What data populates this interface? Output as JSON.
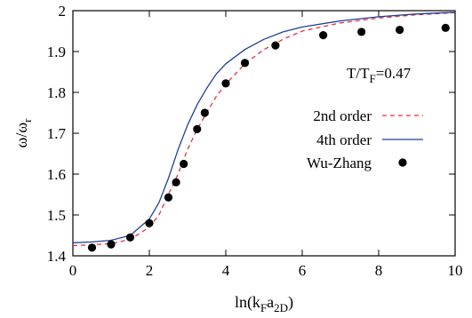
{
  "chart_data": {
    "type": "line",
    "title": "",
    "xlabel": {
      "main": "ln(k",
      "sub1": "F",
      "mid": "a",
      "sub2": "2D",
      "tail": ")"
    },
    "ylabel": {
      "main": "ω/ω",
      "sub": "r"
    },
    "xlim": [
      0,
      10
    ],
    "ylim": [
      1.4,
      2.0
    ],
    "x_ticks": [
      0,
      2,
      4,
      6,
      8,
      10
    ],
    "y_ticks": [
      1.4,
      1.5,
      1.6,
      1.7,
      1.8,
      1.9,
      2.0
    ],
    "x_tick_labels": [
      "0",
      "2",
      "4",
      "6",
      "8",
      "10"
    ],
    "y_tick_labels": [
      "1.4",
      "1.5",
      "1.6",
      "1.7",
      "1.8",
      "1.9",
      "2"
    ],
    "annotation": {
      "main": "T/T",
      "sub": "F",
      "tail": "=0.47"
    },
    "legend_position": "right-middle",
    "series": [
      {
        "name": "2nd order",
        "style": "dashed",
        "color": "#e8303a",
        "x": [
          0.0,
          0.5,
          1.0,
          1.5,
          2.0,
          2.25,
          2.5,
          2.75,
          3.0,
          3.25,
          3.5,
          3.75,
          4.0,
          4.5,
          5.0,
          5.5,
          6.0,
          7.0,
          8.0,
          9.0,
          10.0
        ],
        "y": [
          1.425,
          1.427,
          1.43,
          1.44,
          1.47,
          1.5,
          1.55,
          1.6,
          1.66,
          1.71,
          1.75,
          1.79,
          1.82,
          1.87,
          1.905,
          1.93,
          1.95,
          1.97,
          1.982,
          1.99,
          1.995
        ]
      },
      {
        "name": "4th order",
        "style": "solid",
        "color": "#1f3f9a",
        "x": [
          0.0,
          0.5,
          1.0,
          1.5,
          2.0,
          2.25,
          2.5,
          2.75,
          3.0,
          3.25,
          3.5,
          3.75,
          4.0,
          4.5,
          5.0,
          5.5,
          6.0,
          7.0,
          8.0,
          9.0,
          10.0
        ],
        "y": [
          1.432,
          1.434,
          1.438,
          1.45,
          1.49,
          1.53,
          1.59,
          1.66,
          1.72,
          1.77,
          1.81,
          1.845,
          1.87,
          1.905,
          1.93,
          1.948,
          1.96,
          1.975,
          1.985,
          1.992,
          1.996
        ]
      },
      {
        "name": "Wu-Zhang",
        "style": "points",
        "color": "#000000",
        "x": [
          0.5,
          1.0,
          1.5,
          2.0,
          2.5,
          2.7,
          2.9,
          3.25,
          3.45,
          4.0,
          4.5,
          5.3,
          6.55,
          7.55,
          8.55,
          9.75
        ],
        "y": [
          1.42,
          1.428,
          1.445,
          1.48,
          1.543,
          1.58,
          1.625,
          1.71,
          1.75,
          1.822,
          1.872,
          1.915,
          1.94,
          1.948,
          1.953,
          1.958
        ]
      }
    ]
  }
}
